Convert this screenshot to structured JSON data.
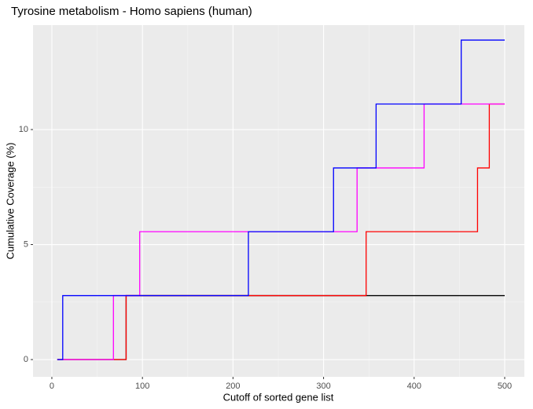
{
  "chart_data": {
    "type": "line",
    "step": true,
    "title": "Tyrosine metabolism - Homo sapiens (human)",
    "x_label": "Cutoff of sorted gene list",
    "y_label": "Cumulative Coverage (%)",
    "x": [
      6,
      12,
      68,
      82,
      97,
      217,
      311,
      337,
      347,
      358,
      411,
      452,
      470,
      483,
      500
    ],
    "series": [
      {
        "color": "#000000",
        "values": [
          0,
          0,
          0,
          2.78,
          2.78,
          2.78,
          2.78,
          2.78,
          2.78,
          2.78,
          2.78,
          2.78,
          2.78,
          2.78,
          2.78
        ]
      },
      {
        "color": "#ff0000",
        "values": [
          0,
          0,
          0,
          2.78,
          2.78,
          2.78,
          2.78,
          2.78,
          5.56,
          5.56,
          5.56,
          5.56,
          8.33,
          11.11,
          11.11
        ]
      },
      {
        "color": "#ff00ff",
        "values": [
          0,
          0,
          2.78,
          2.78,
          5.56,
          5.56,
          5.56,
          8.33,
          8.33,
          8.33,
          11.11,
          11.11,
          11.11,
          11.11,
          11.11
        ]
      },
      {
        "color": "#0000ff",
        "values": [
          0,
          2.78,
          2.78,
          2.78,
          2.78,
          5.56,
          8.33,
          8.33,
          8.33,
          11.11,
          11.11,
          13.89,
          13.89,
          13.89,
          13.89
        ]
      }
    ],
    "xlim": [
      -20.8,
      521.7
    ],
    "xticks": [
      0,
      100,
      200,
      300,
      400,
      500
    ],
    "ylim": [
      -0.75,
      14.54
    ],
    "yticks": [
      0,
      5,
      10
    ],
    "grid": true
  }
}
